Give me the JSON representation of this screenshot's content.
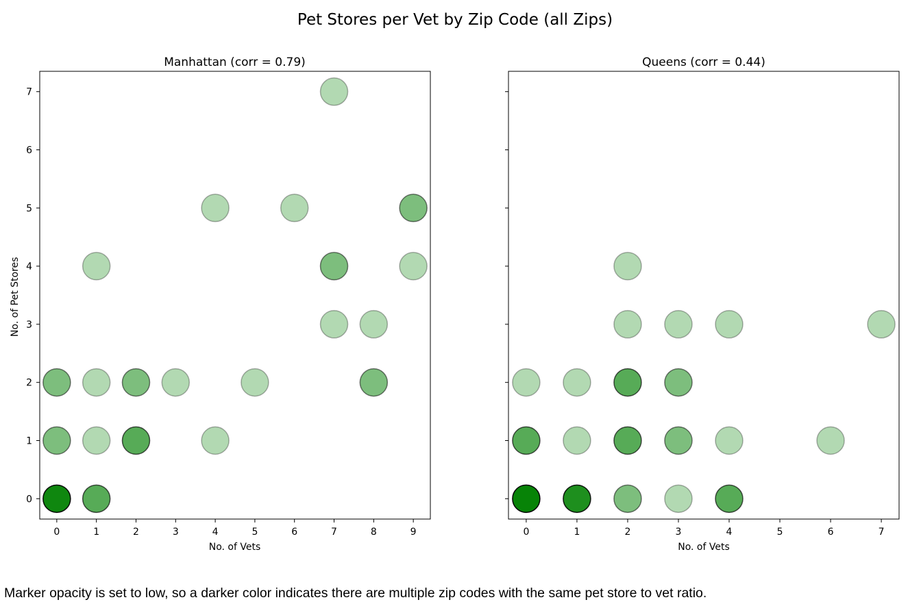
{
  "figure": {
    "title": "Pet Stores per Vet by Zip Code (all Zips)"
  },
  "caption": "Marker opacity is set to low, so a darker color indicates there are multiple zip codes with the same pet store to vet ratio.",
  "chart_data": [
    {
      "type": "scatter",
      "title": "Manhattan (corr = 0.79)",
      "xlabel": "No. of Vets",
      "ylabel": "No. of Pet Stores",
      "xticks": [
        0,
        1,
        2,
        3,
        4,
        5,
        6,
        7,
        8,
        9
      ],
      "yticks": [
        0,
        1,
        2,
        3,
        4,
        5,
        6,
        7
      ],
      "xlim": [
        -0.43,
        9.43
      ],
      "ylim": [
        -0.35,
        7.35
      ],
      "marker_color": "#008000",
      "marker_alpha": 0.3,
      "grid": false,
      "points": [
        {
          "x": 0,
          "y": 0,
          "count": 8
        },
        {
          "x": 1,
          "y": 0,
          "count": 3
        },
        {
          "x": 0,
          "y": 1,
          "count": 2
        },
        {
          "x": 1,
          "y": 1,
          "count": 1
        },
        {
          "x": 2,
          "y": 1,
          "count": 3
        },
        {
          "x": 4,
          "y": 1,
          "count": 1
        },
        {
          "x": 0,
          "y": 2,
          "count": 2
        },
        {
          "x": 1,
          "y": 2,
          "count": 1
        },
        {
          "x": 2,
          "y": 2,
          "count": 2
        },
        {
          "x": 3,
          "y": 2,
          "count": 1
        },
        {
          "x": 5,
          "y": 2,
          "count": 1
        },
        {
          "x": 8,
          "y": 2,
          "count": 2
        },
        {
          "x": 7,
          "y": 3,
          "count": 1
        },
        {
          "x": 8,
          "y": 3,
          "count": 1
        },
        {
          "x": 1,
          "y": 4,
          "count": 1
        },
        {
          "x": 7,
          "y": 4,
          "count": 2
        },
        {
          "x": 9,
          "y": 4,
          "count": 1
        },
        {
          "x": 4,
          "y": 5,
          "count": 1
        },
        {
          "x": 6,
          "y": 5,
          "count": 1
        },
        {
          "x": 9,
          "y": 5,
          "count": 2
        },
        {
          "x": 7,
          "y": 7,
          "count": 1
        }
      ]
    },
    {
      "type": "scatter",
      "title": "Queens (corr = 0.44)",
      "xlabel": "No. of Vets",
      "ylabel": "",
      "xticks": [
        0,
        1,
        2,
        3,
        4,
        5,
        6,
        7
      ],
      "yticks": [
        0,
        1,
        2,
        3,
        4,
        5,
        6,
        7
      ],
      "xlim": [
        -0.35,
        7.35
      ],
      "ylim": [
        -0.35,
        7.35
      ],
      "marker_color": "#008000",
      "marker_alpha": 0.3,
      "grid": false,
      "shared_y": true,
      "points": [
        {
          "x": 0,
          "y": 0,
          "count": 10
        },
        {
          "x": 1,
          "y": 0,
          "count": 6
        },
        {
          "x": 2,
          "y": 0,
          "count": 2
        },
        {
          "x": 3,
          "y": 0,
          "count": 1
        },
        {
          "x": 4,
          "y": 0,
          "count": 3
        },
        {
          "x": 0,
          "y": 1,
          "count": 3
        },
        {
          "x": 1,
          "y": 1,
          "count": 1
        },
        {
          "x": 2,
          "y": 1,
          "count": 3
        },
        {
          "x": 3,
          "y": 1,
          "count": 2
        },
        {
          "x": 4,
          "y": 1,
          "count": 1
        },
        {
          "x": 6,
          "y": 1,
          "count": 1
        },
        {
          "x": 0,
          "y": 2,
          "count": 1
        },
        {
          "x": 1,
          "y": 2,
          "count": 1
        },
        {
          "x": 2,
          "y": 2,
          "count": 3
        },
        {
          "x": 3,
          "y": 2,
          "count": 2
        },
        {
          "x": 2,
          "y": 3,
          "count": 1
        },
        {
          "x": 3,
          "y": 3,
          "count": 1
        },
        {
          "x": 4,
          "y": 3,
          "count": 1
        },
        {
          "x": 7,
          "y": 3,
          "count": 1
        },
        {
          "x": 2,
          "y": 4,
          "count": 1
        }
      ]
    }
  ]
}
